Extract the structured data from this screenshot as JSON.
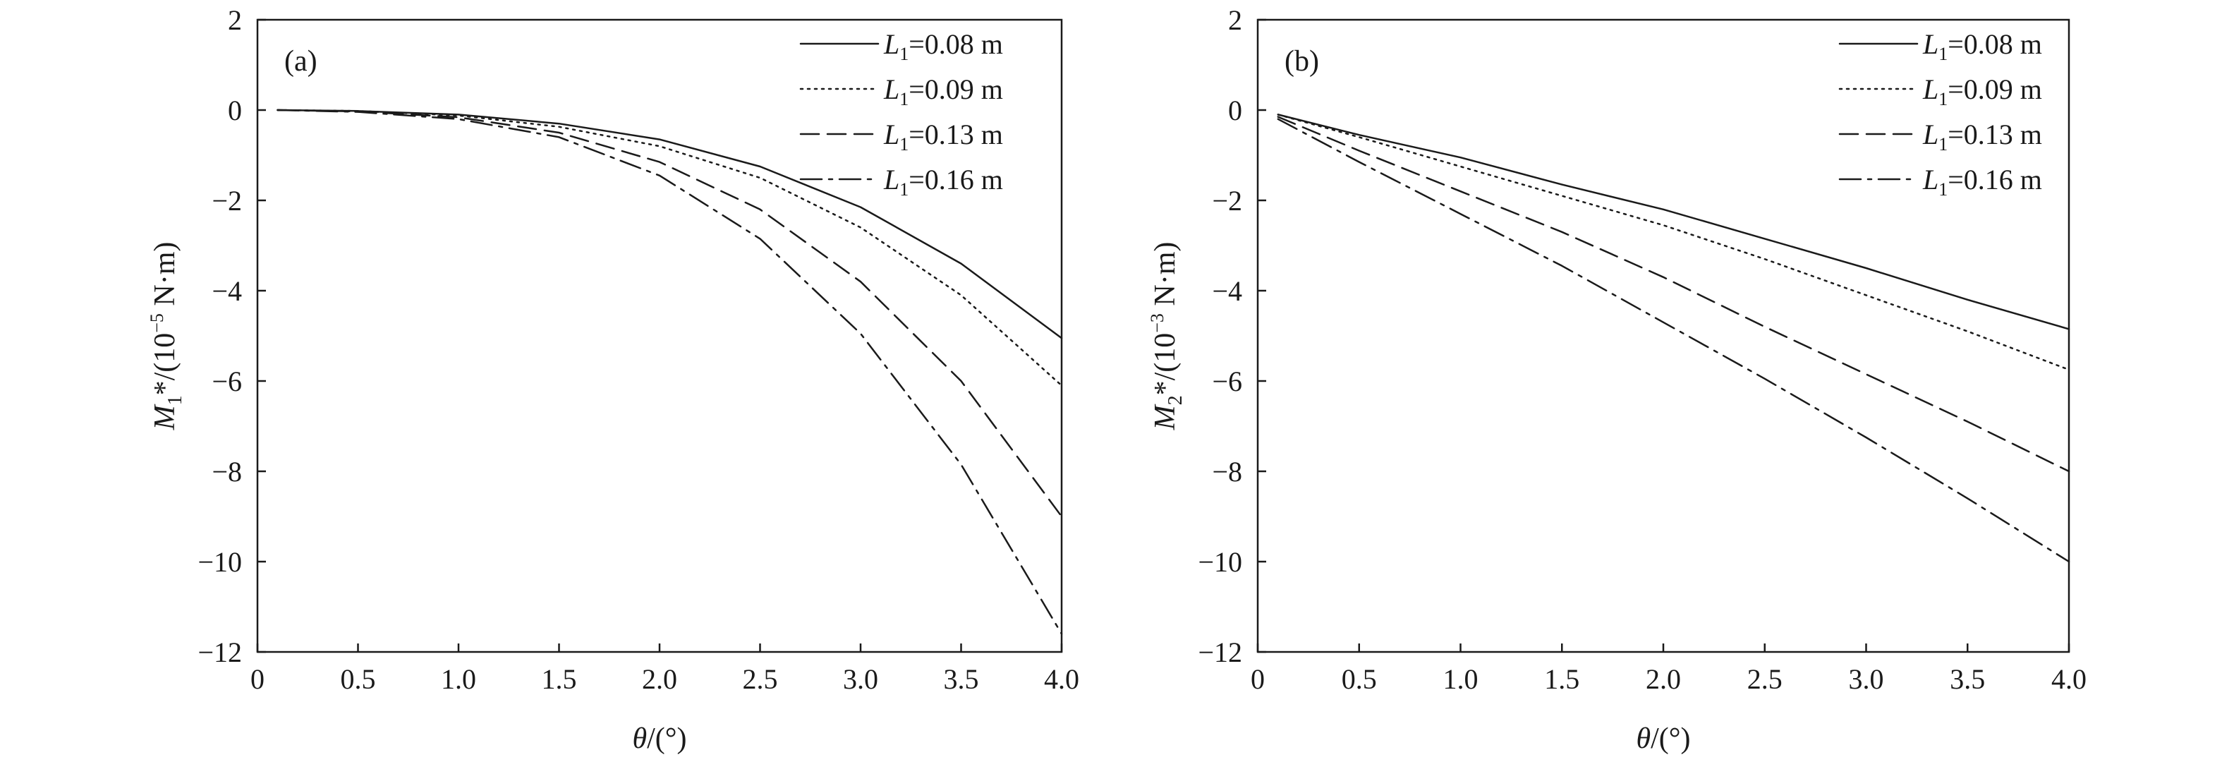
{
  "chart_data": [
    {
      "type": "line",
      "panel_label": "(a)",
      "ylabel": {
        "base": "M",
        "sub": "1",
        "sup_mark": "*",
        "unit_prefix": "/(10",
        "exp": "−5",
        "unit_suffix": " N·m)"
      },
      "xlabel": {
        "symbol": "θ",
        "unit": "/(°)"
      },
      "xlim": [
        0,
        4.0
      ],
      "ylim": [
        -12,
        2
      ],
      "x_ticks": [
        "0",
        "0.5",
        "1.0",
        "1.5",
        "2.0",
        "2.5",
        "3.0",
        "3.5",
        "4.0"
      ],
      "y_ticks": [
        "2",
        "0",
        "−2",
        "−4",
        "−6",
        "−8",
        "−10",
        "−12"
      ],
      "grid": false,
      "legend_position": "top-right",
      "x": [
        0.1,
        0.5,
        1.0,
        1.5,
        2.0,
        2.5,
        3.0,
        3.5,
        4.0
      ],
      "series": [
        {
          "name": "L1=0.08 m",
          "legend": {
            "sym": "L",
            "sub": "1",
            "rest": "=0.08 m"
          },
          "style": "solid",
          "values": [
            0.0,
            -0.02,
            -0.1,
            -0.3,
            -0.65,
            -1.25,
            -2.15,
            -3.4,
            -5.05
          ]
        },
        {
          "name": "L1=0.09 m",
          "legend": {
            "sym": "L",
            "sub": "1",
            "rest": "=0.09 m"
          },
          "style": "dotted",
          "values": [
            0.0,
            -0.02,
            -0.12,
            -0.37,
            -0.8,
            -1.5,
            -2.6,
            -4.1,
            -6.1
          ]
        },
        {
          "name": "L1=0.13 m",
          "legend": {
            "sym": "L",
            "sub": "1",
            "rest": "=0.13 m"
          },
          "style": "dashed",
          "values": [
            0.0,
            -0.03,
            -0.16,
            -0.5,
            -1.15,
            -2.2,
            -3.8,
            -6.0,
            -9.0
          ]
        },
        {
          "name": "L1=0.16 m",
          "legend": {
            "sym": "L",
            "sub": "1",
            "rest": "=0.16 m"
          },
          "style": "dashdot",
          "values": [
            0.0,
            -0.04,
            -0.2,
            -0.6,
            -1.45,
            -2.85,
            -4.95,
            -7.85,
            -11.6
          ]
        }
      ]
    },
    {
      "type": "line",
      "panel_label": "(b)",
      "ylabel": {
        "base": "M",
        "sub": "2",
        "sup_mark": "*",
        "unit_prefix": "/(10",
        "exp": "−3",
        "unit_suffix": " N·m)"
      },
      "xlabel": {
        "symbol": "θ",
        "unit": "/(°)"
      },
      "xlim": [
        0,
        4.0
      ],
      "ylim": [
        -12,
        2
      ],
      "x_ticks": [
        "0",
        "0.5",
        "1.0",
        "1.5",
        "2.0",
        "2.5",
        "3.0",
        "3.5",
        "4.0"
      ],
      "y_ticks": [
        "2",
        "0",
        "−2",
        "−4",
        "−6",
        "−8",
        "−10",
        "−12"
      ],
      "grid": false,
      "legend_position": "top-right",
      "x": [
        0.1,
        0.5,
        1.0,
        1.5,
        2.0,
        2.5,
        3.0,
        3.5,
        4.0
      ],
      "series": [
        {
          "name": "L1=0.08 m",
          "legend": {
            "sym": "L",
            "sub": "1",
            "rest": "=0.08 m"
          },
          "style": "solid",
          "values": [
            -0.1,
            -0.55,
            -1.05,
            -1.65,
            -2.2,
            -2.85,
            -3.5,
            -4.2,
            -4.85
          ]
        },
        {
          "name": "L1=0.09 m",
          "legend": {
            "sym": "L",
            "sub": "1",
            "rest": "=0.09 m"
          },
          "style": "dotted",
          "values": [
            -0.1,
            -0.6,
            -1.25,
            -1.9,
            -2.55,
            -3.3,
            -4.1,
            -4.9,
            -5.75
          ]
        },
        {
          "name": "L1=0.13 m",
          "legend": {
            "sym": "L",
            "sub": "1",
            "rest": "=0.13 m"
          },
          "style": "dashed",
          "values": [
            -0.15,
            -0.9,
            -1.8,
            -2.7,
            -3.7,
            -4.8,
            -5.85,
            -6.9,
            -8.0
          ]
        },
        {
          "name": "L1=0.16 m",
          "legend": {
            "sym": "L",
            "sub": "1",
            "rest": "=0.16 m"
          },
          "style": "dashdot",
          "values": [
            -0.2,
            -1.15,
            -2.3,
            -3.45,
            -4.7,
            -5.95,
            -7.25,
            -8.6,
            -10.0
          ]
        }
      ]
    }
  ]
}
